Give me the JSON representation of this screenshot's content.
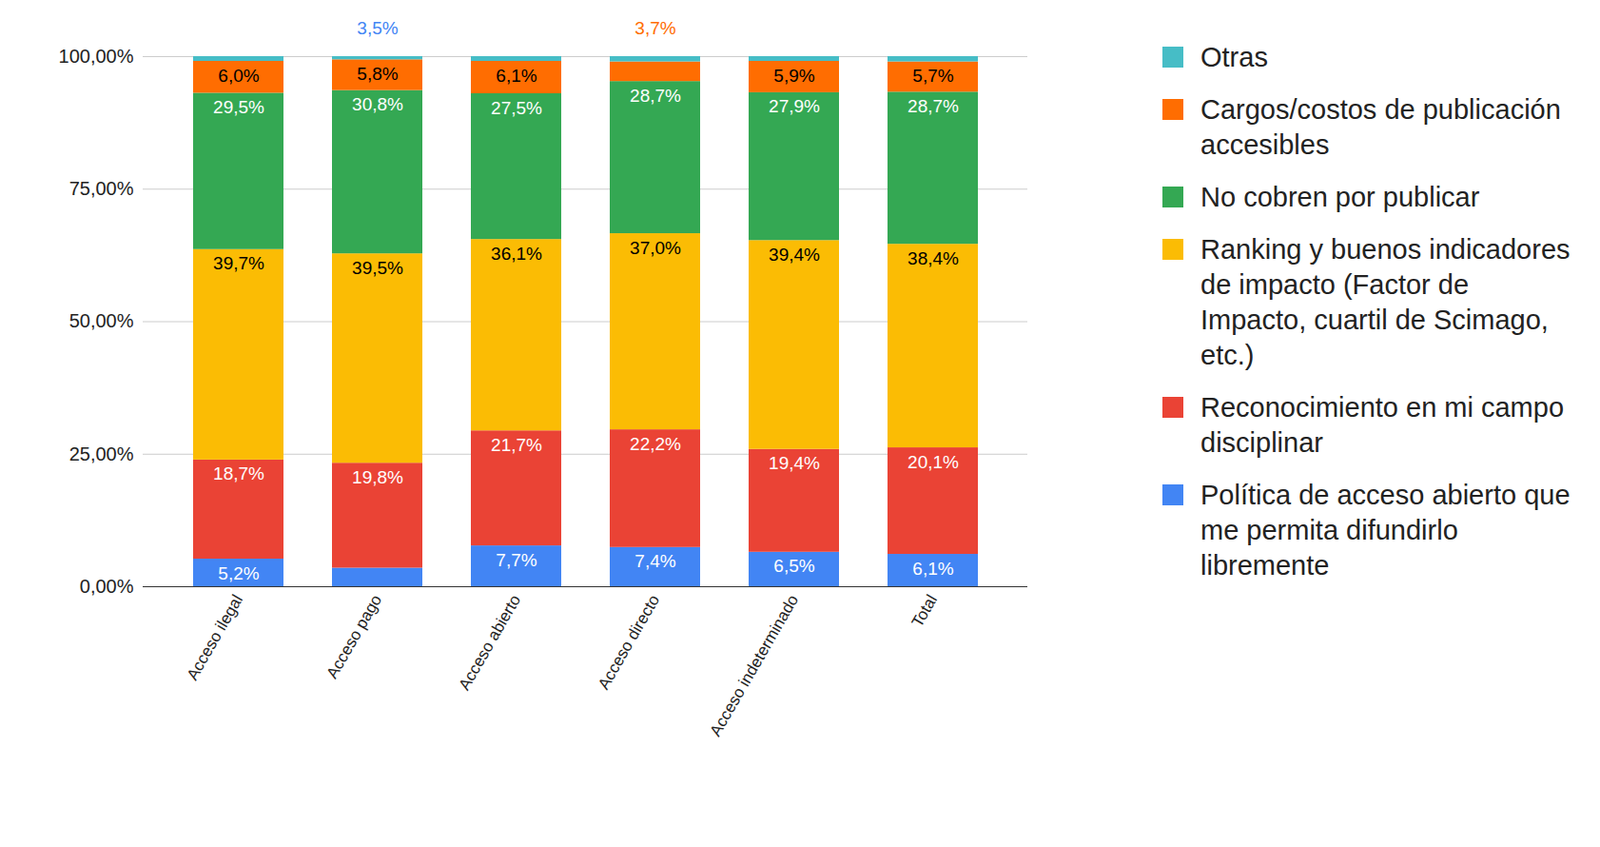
{
  "chart_data": {
    "type": "bar",
    "stacked": true,
    "data_labels": true,
    "grid": true,
    "legend": "right",
    "categories": [
      "Acceso ilegal",
      "Acceso pago",
      "Acceso abierto",
      "Acceso directo",
      "Acceso indeterminado",
      "Total"
    ],
    "ylim": [
      0,
      100
    ],
    "yticks": [
      {
        "value": 0,
        "label": "0,00%"
      },
      {
        "value": 25,
        "label": "25,00%"
      },
      {
        "value": 50,
        "label": "50,00%"
      },
      {
        "value": 75,
        "label": "75,00%"
      },
      {
        "value": 100,
        "label": "100,00%"
      }
    ],
    "series": [
      {
        "name": "Política de acceso abierto que me permita difundirlo libremente",
        "color": "#4285f4",
        "values": [
          5.2,
          3.5,
          7.7,
          7.4,
          6.5,
          6.1
        ],
        "value_labels": [
          "5,2%",
          "3,5%",
          "7,7%",
          "7,4%",
          "6,5%",
          "6,1%"
        ]
      },
      {
        "name": "Reconocimiento en mi campo disciplinar",
        "color": "#ea4335",
        "values": [
          18.7,
          19.8,
          21.7,
          22.2,
          19.4,
          20.1
        ],
        "value_labels": [
          "18,7%",
          "19,8%",
          "21,7%",
          "22,2%",
          "19,4%",
          "20,1%"
        ]
      },
      {
        "name": "Ranking y buenos indicadores de impacto (Factor de Impacto, cuartil de Scimago, etc.)",
        "color": "#fbbc04",
        "values": [
          39.7,
          39.5,
          36.1,
          37.0,
          39.4,
          38.4
        ],
        "value_labels": [
          "39,7%",
          "39,5%",
          "36,1%",
          "37,0%",
          "39,4%",
          "38,4%"
        ]
      },
      {
        "name": "No cobren por publicar",
        "color": "#34a853",
        "values": [
          29.5,
          30.8,
          27.5,
          28.7,
          27.9,
          28.7
        ],
        "value_labels": [
          "29,5%",
          "30,8%",
          "27,5%",
          "28,7%",
          "27,9%",
          "28,7%"
        ]
      },
      {
        "name": "Cargos/costos de publicación accesibles",
        "color": "#ff6d01",
        "values": [
          6.0,
          5.8,
          6.1,
          3.7,
          5.9,
          5.7
        ],
        "value_labels": [
          "6,0%",
          "5,8%",
          "6,1%",
          "3,7%",
          "5,9%",
          "5,7%"
        ]
      },
      {
        "name": "Otras",
        "color": "#46bdc6",
        "values": [
          0.9,
          0.6,
          0.9,
          1.0,
          0.9,
          1.0
        ]
      }
    ]
  }
}
